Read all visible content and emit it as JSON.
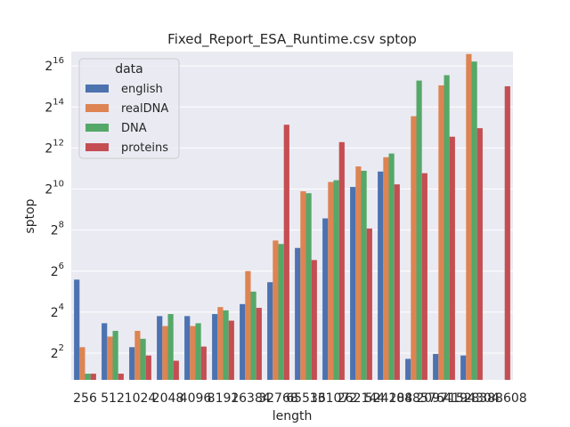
{
  "chart_data": {
    "type": "bar",
    "title": "Fixed_Report_ESA_Runtime.csv sptop",
    "xlabel": "length",
    "ylabel": "sptop",
    "yscale": "log2",
    "ylim_exp": [
      0.7,
      16.7
    ],
    "yticks": [
      {
        "base": "2",
        "exp": "2",
        "value": 4
      },
      {
        "base": "2",
        "exp": "4",
        "value": 16
      },
      {
        "base": "2",
        "exp": "6",
        "value": 64
      },
      {
        "base": "2",
        "exp": "8",
        "value": 256
      },
      {
        "base": "2",
        "exp": "10",
        "value": 1024
      },
      {
        "base": "2",
        "exp": "12",
        "value": 4096
      },
      {
        "base": "2",
        "exp": "14",
        "value": 16384
      },
      {
        "base": "2",
        "exp": "16",
        "value": 65536
      }
    ],
    "categories": [
      "256",
      "512",
      "1024",
      "2048",
      "4096",
      "8192",
      "16384",
      "32768",
      "65536",
      "131072",
      "262144",
      "524288",
      "1048576",
      "2097152",
      "4194304",
      "8388608"
    ],
    "legend": {
      "title": "data",
      "placement": "upper-left"
    },
    "grid": true,
    "series": [
      {
        "name": "english",
        "color": "#4c72b0",
        "values": [
          48,
          11,
          4.9,
          14,
          14,
          15,
          21,
          44,
          140,
          380,
          1100,
          1850,
          3.3,
          3.9,
          3.7,
          null
        ]
      },
      {
        "name": "realDNA",
        "color": "#dd8452",
        "values": [
          4.9,
          7,
          8.5,
          10,
          10,
          19,
          64,
          180,
          950,
          1300,
          2200,
          3000,
          12000,
          34000,
          98000,
          null
        ]
      },
      {
        "name": "DNA",
        "color": "#55a868",
        "values": [
          2,
          8.5,
          6.5,
          15,
          11,
          17,
          32,
          160,
          890,
          1380,
          1900,
          3400,
          40000,
          48000,
          76000,
          null
        ]
      },
      {
        "name": "proteins",
        "color": "#c44e52",
        "values": [
          2,
          2,
          3.7,
          3.1,
          5,
          12,
          18.5,
          9000,
          93,
          5000,
          270,
          1200,
          1750,
          6000,
          8000,
          33000
        ]
      }
    ]
  }
}
